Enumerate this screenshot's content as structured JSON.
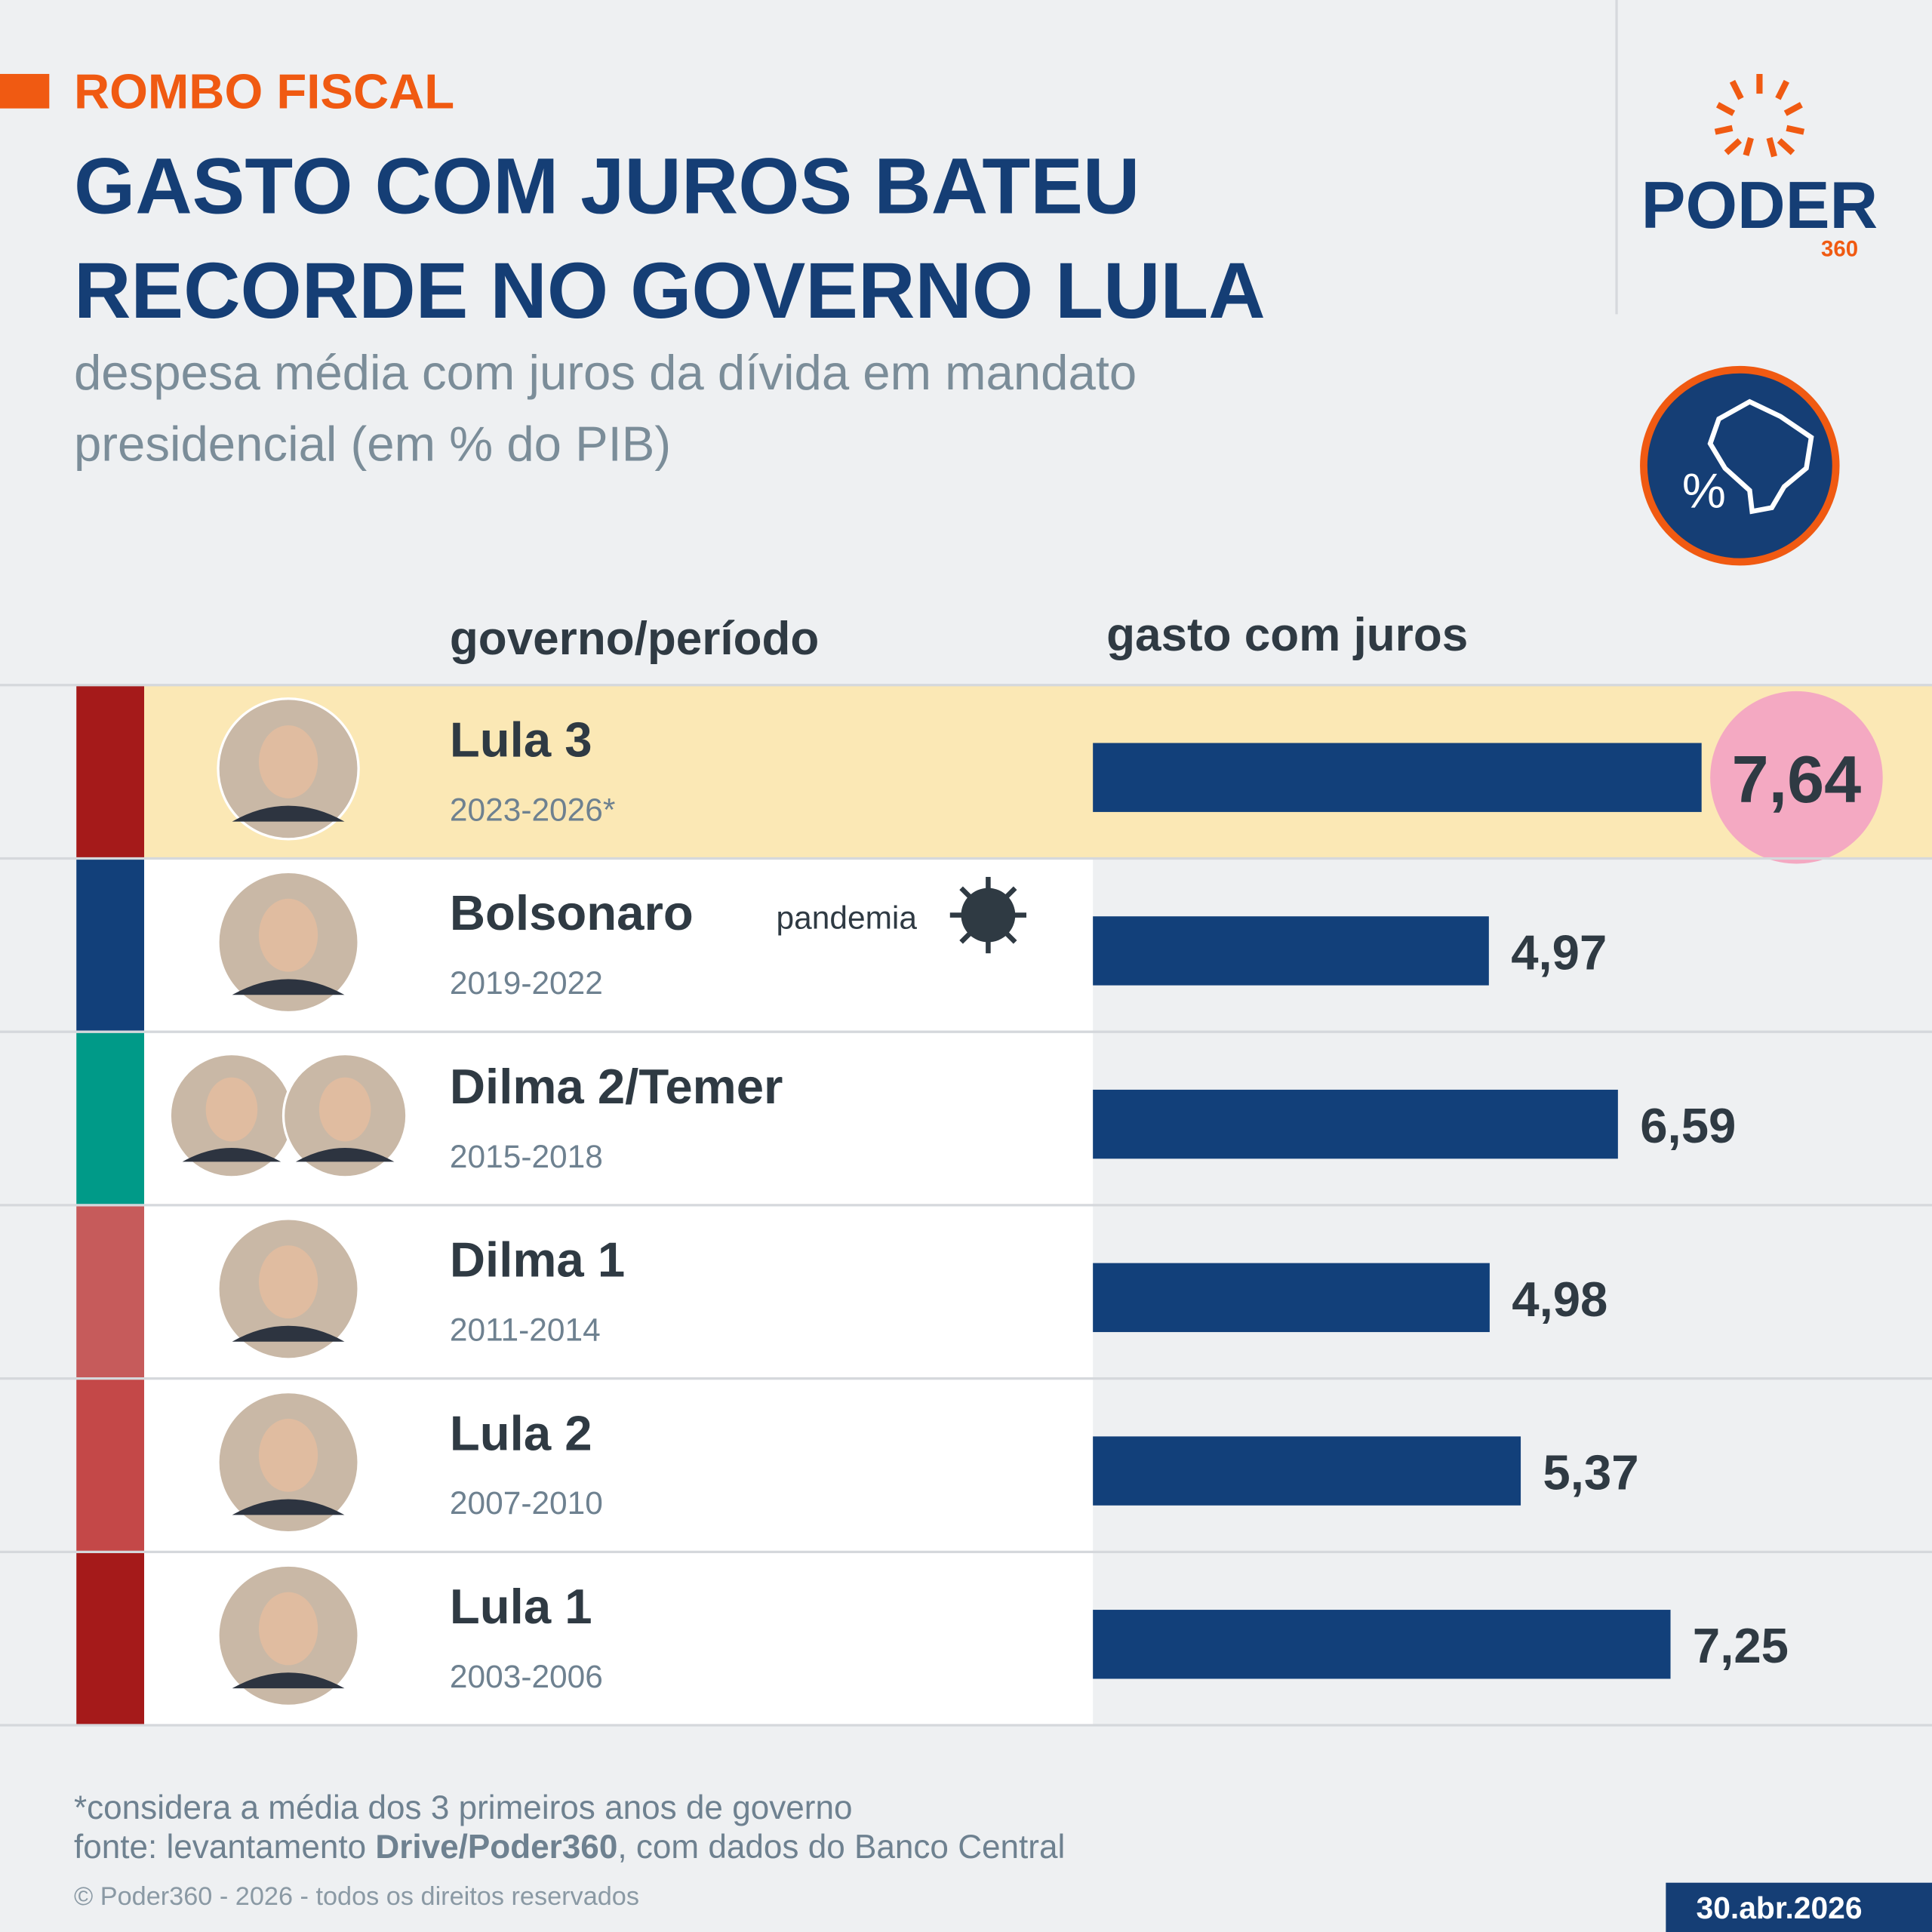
{
  "kicker": "ROMBO FISCAL",
  "title_lines": [
    "GASTO COM JUROS BATEU",
    "RECORDE NO GOVERNO LULA"
  ],
  "subtitle_lines": [
    "despesa média com juros da dívida em mandato",
    "presidencial (em % do PIB)"
  ],
  "logo": {
    "name": "PODER",
    "number": "360"
  },
  "chart_data": {
    "type": "bar",
    "orientation": "horizontal",
    "category_header": "governo/período",
    "value_header": "gasto com juros",
    "categories": [
      "Lula 3",
      "Bolsonaro",
      "Dilma 2/Temer",
      "Dilma 1",
      "Lula 2",
      "Lula 1"
    ],
    "periods": [
      "2023-2026*",
      "2019-2022",
      "2015-2018",
      "2011-2014",
      "2007-2010",
      "2003-2006"
    ],
    "values": [
      7.64,
      4.97,
      6.59,
      4.98,
      5.37,
      7.25
    ],
    "value_labels": [
      "7,64",
      "4,97",
      "6,59",
      "4,98",
      "5,37",
      "7,25"
    ],
    "color": "#12407a",
    "side_colors": [
      "#a51a1a",
      "#12407a",
      "#009a88",
      "#c65b5b",
      "#c44848",
      "#a51a1a"
    ],
    "highlight": "Lula 3",
    "annotation": {
      "category": "Bolsonaro",
      "text": "pandemia"
    }
  },
  "footnote": "*considera a média dos 3 primeiros anos de governo",
  "source": {
    "prefix": "fonte: levantamento ",
    "bold": "Drive/Poder360",
    "suffix": ", com dados do Banco Central"
  },
  "copyright": "© Poder360 - 2026 - todos os direitos reservados",
  "date": "30.abr.2026"
}
